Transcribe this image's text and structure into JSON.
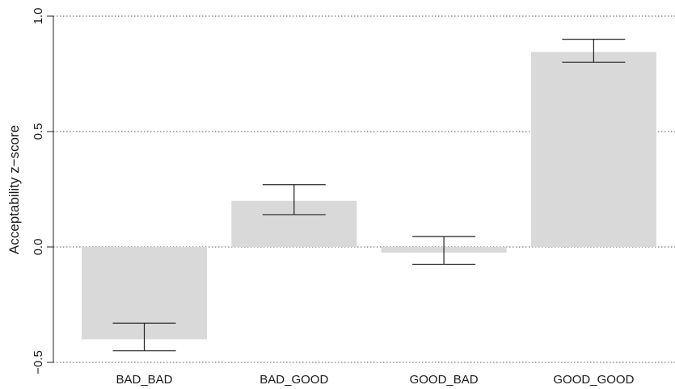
{
  "chart_data": {
    "type": "bar",
    "ylabel": "Acceptability z−score",
    "xlabel": "",
    "ylim": [
      -0.5,
      1.0
    ],
    "yticks": [
      {
        "value": -0.5,
        "label": "−0.5"
      },
      {
        "value": 0.0,
        "label": "0.0"
      },
      {
        "value": 0.5,
        "label": "0.5"
      },
      {
        "value": 1.0,
        "label": "1.0"
      }
    ],
    "grid": true,
    "categories": [
      "BAD_BAD",
      "BAD_GOOD",
      "GOOD_BAD",
      "GOOD_GOOD"
    ],
    "values": [
      -0.4,
      0.2,
      -0.025,
      0.845
    ],
    "error_bars": [
      {
        "low": -0.45,
        "high": -0.33
      },
      {
        "low": 0.14,
        "high": 0.27
      },
      {
        "low": -0.075,
        "high": 0.045
      },
      {
        "low": 0.8,
        "high": 0.9
      }
    ],
    "colors": {
      "bar": "#d9d9d9",
      "error": "#222222",
      "grid": "#555555",
      "axis": "#222222"
    }
  }
}
